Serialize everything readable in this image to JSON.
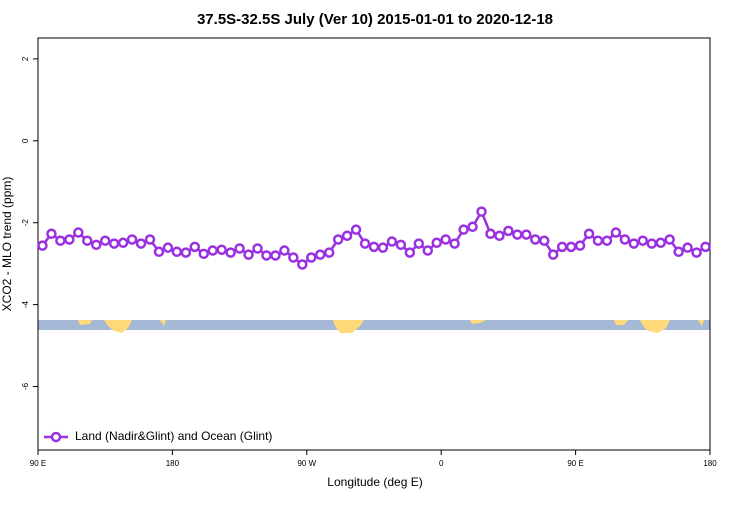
{
  "chart_data": {
    "type": "line",
    "title": "37.5S-32.5S July (Ver 10)   2015-01-01 to 2020-12-18",
    "x_label": "Longitude (deg E)",
    "y_label": "XCO2 - MLO trend (ppm)",
    "x": [
      93,
      99,
      105,
      111,
      117,
      123,
      129,
      135,
      141,
      147,
      153,
      159,
      165,
      171,
      177,
      183,
      189,
      195,
      201,
      207,
      213,
      219,
      225,
      231,
      237,
      243,
      249,
      255,
      261,
      267,
      273,
      279,
      285,
      291,
      297,
      303,
      309,
      315,
      321,
      327,
      333,
      339,
      345,
      351,
      357,
      363,
      369,
      375,
      381,
      387,
      393,
      399,
      405,
      411,
      417,
      423,
      429,
      435,
      441,
      447,
      453,
      459,
      465,
      471,
      477,
      483,
      489,
      495,
      501,
      507,
      513,
      519,
      525,
      531,
      537
    ],
    "series": [
      {
        "name": "Land (Nadir&Glint) and Ocean (Glint)",
        "color": "#9b30e0",
        "values": [
          -2.56,
          -2.27,
          -2.44,
          -2.41,
          -2.24,
          -2.44,
          -2.54,
          -2.44,
          -2.51,
          -2.49,
          -2.41,
          -2.51,
          -2.41,
          -2.71,
          -2.61,
          -2.71,
          -2.73,
          -2.59,
          -2.76,
          -2.68,
          -2.66,
          -2.73,
          -2.63,
          -2.78,
          -2.63,
          -2.8,
          -2.8,
          -2.68,
          -2.85,
          -3.02,
          -2.85,
          -2.78,
          -2.73,
          -2.41,
          -2.32,
          -2.17,
          -2.51,
          -2.59,
          -2.61,
          -2.46,
          -2.54,
          -2.73,
          -2.51,
          -2.68,
          -2.49,
          -2.41,
          -2.51,
          -2.17,
          -2.1,
          -1.73,
          -2.27,
          -2.32,
          -2.2,
          -2.29,
          -2.29,
          -2.41,
          -2.44,
          -2.78,
          -2.59,
          -2.59,
          -2.56,
          -2.27,
          -2.44,
          -2.44,
          -2.24,
          -2.41,
          -2.51,
          -2.44,
          -2.51,
          -2.49,
          -2.41,
          -2.71,
          -2.61,
          -2.73,
          -2.59
        ]
      }
    ],
    "xlim": [
      90,
      540
    ],
    "xticks": [
      {
        "value": 90,
        "label": "90 E"
      },
      180,
      {
        "value": 270,
        "label": "90 W"
      },
      {
        "value": 360,
        "label": "0"
      },
      {
        "value": 450,
        "label": "90 E"
      },
      {
        "value": 540,
        "label": "180"
      }
    ],
    "ylim": [
      -7.55,
      2.51
    ],
    "yticks": [
      -6,
      -4,
      -2,
      0,
      2
    ],
    "legend": "bottomleft"
  }
}
